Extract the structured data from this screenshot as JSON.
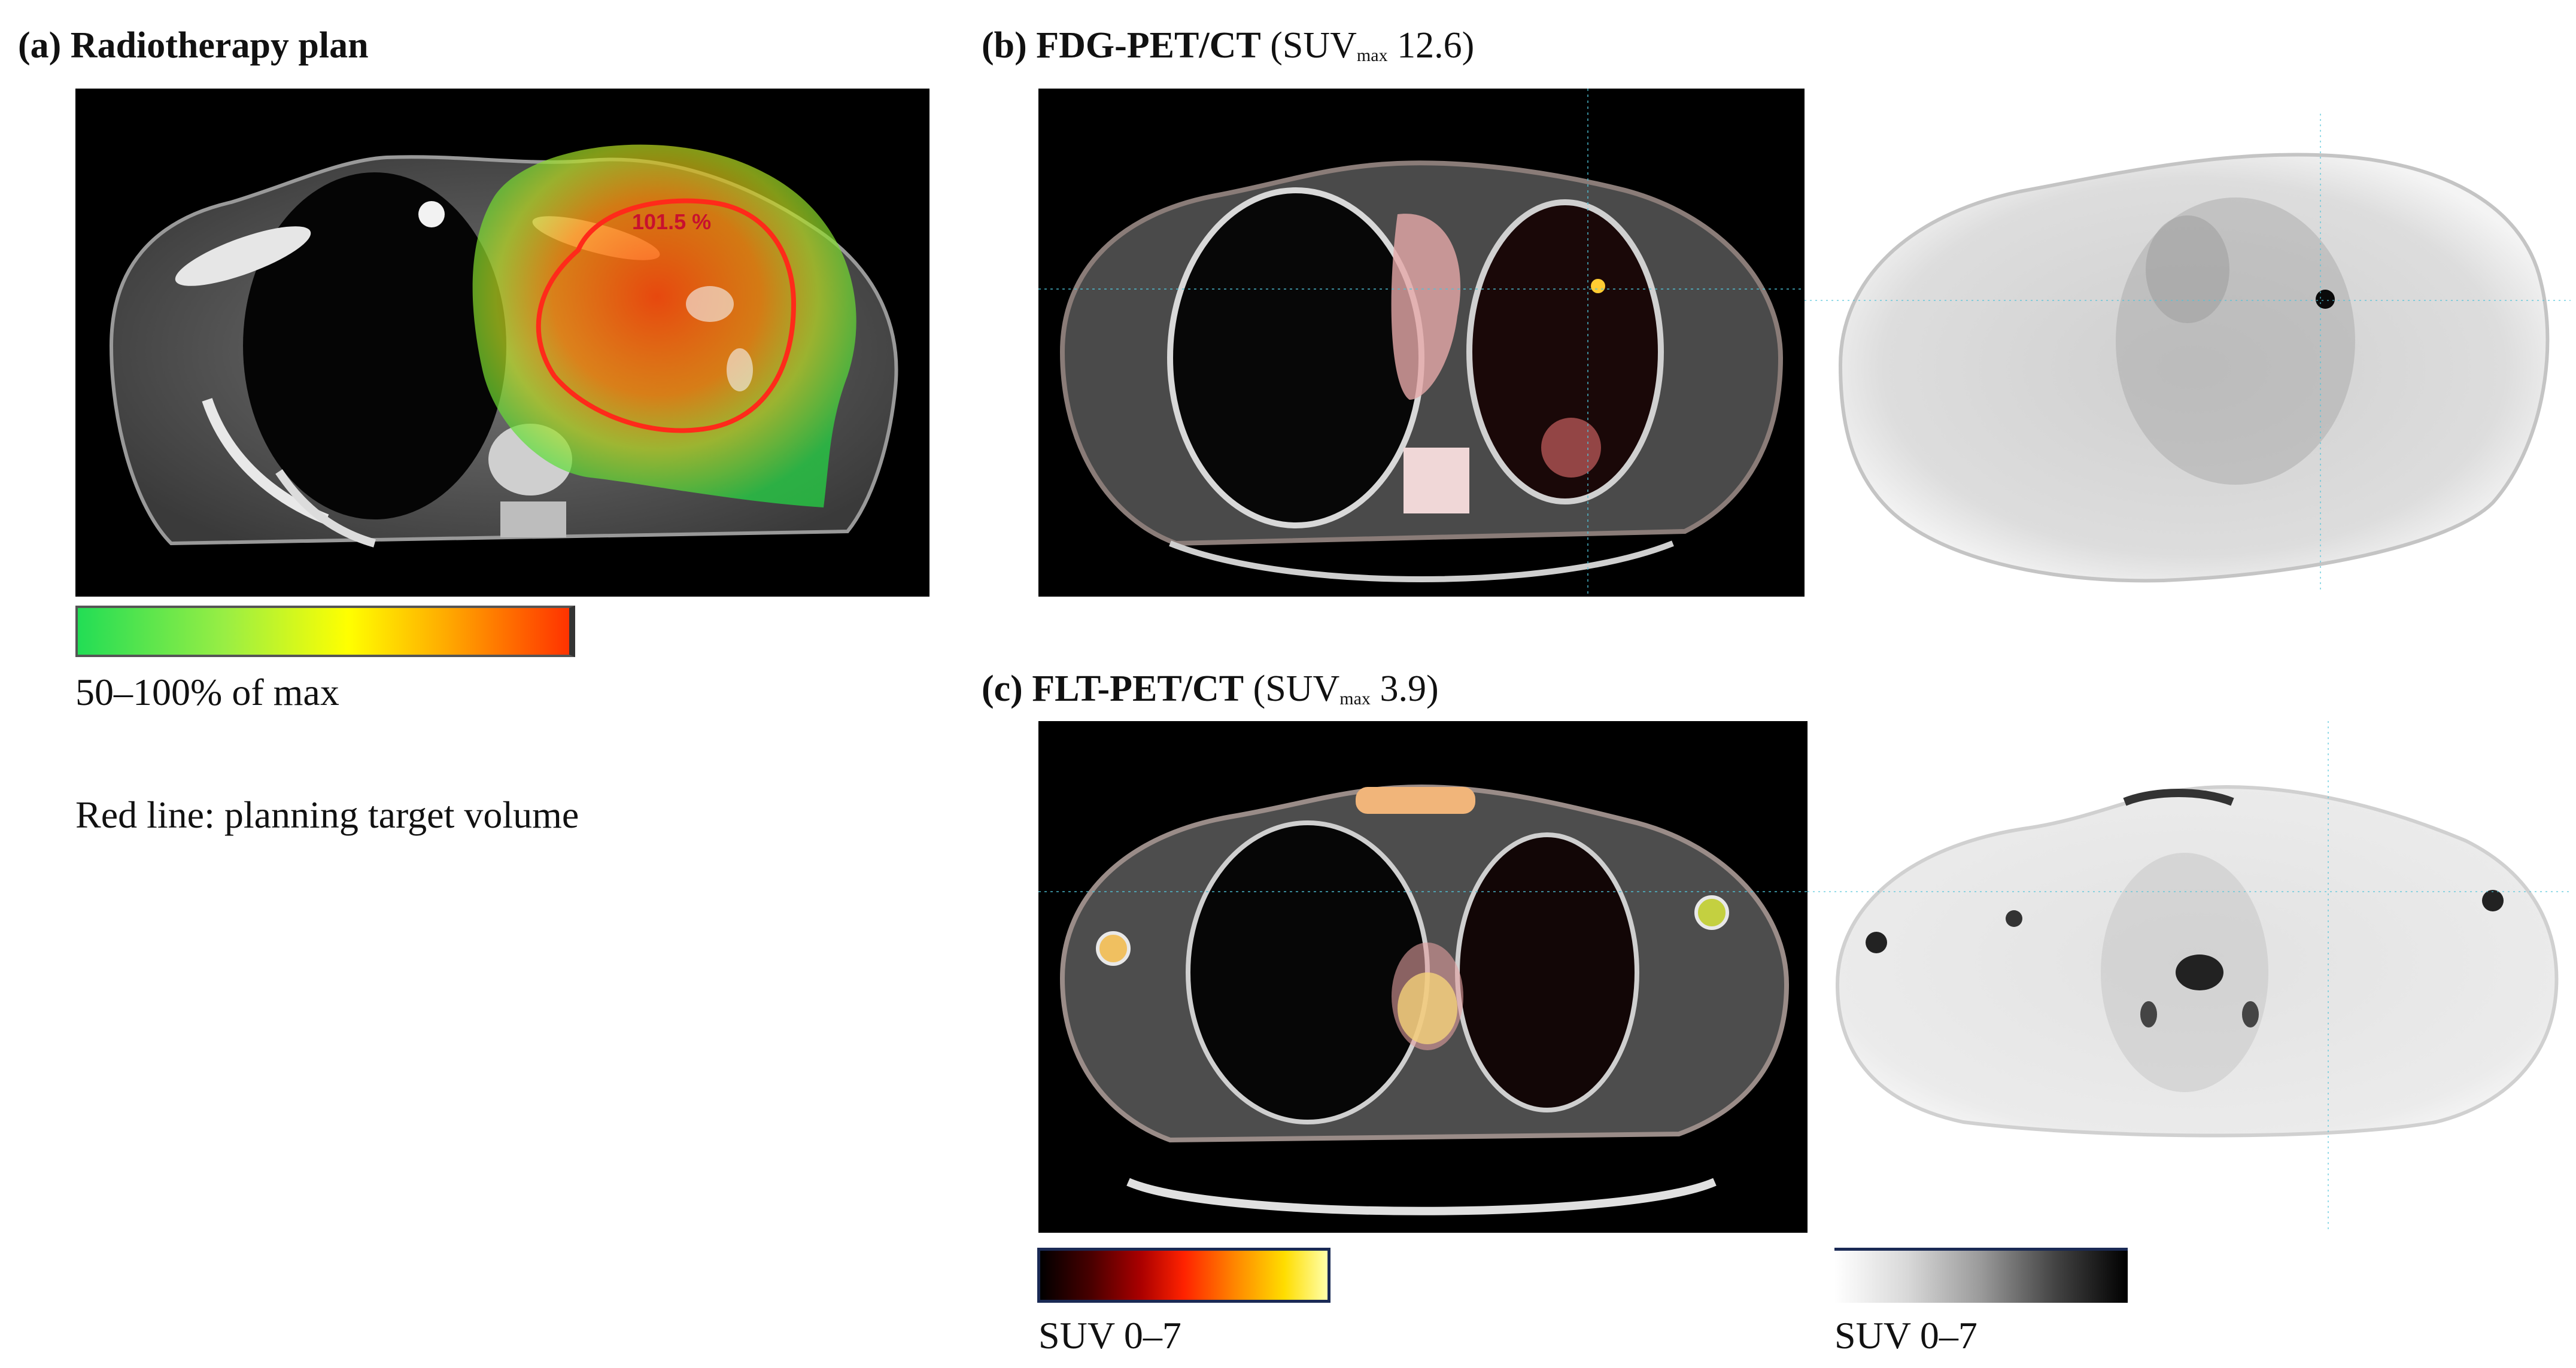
{
  "panels": {
    "a": {
      "label": "(a)",
      "title": "Radiotherapy plan",
      "dose_label": "101.5 %",
      "colorbar_caption": "50–100% of max",
      "note": "Red line: planning target volume"
    },
    "b": {
      "label": "(b)",
      "title": "FDG-PET/CT",
      "suv_open": "(SUV",
      "suv_sub": "max",
      "suv_value": " 12.6)"
    },
    "c": {
      "label": "(c)",
      "title": "FLT-PET/CT",
      "suv_open": "(SUV",
      "suv_sub": "max",
      "suv_value": " 3.9)",
      "hot_scale_caption": "SUV 0–7",
      "gray_scale_caption": "SUV 0–7"
    }
  },
  "colors": {
    "dose_green": "#22dd44",
    "dose_red": "#ff3300",
    "ptv_line": "#ff2a1a",
    "ct_background": "#000000",
    "pet_background": "#ffffff",
    "crosshair": "#4fc3d8"
  }
}
